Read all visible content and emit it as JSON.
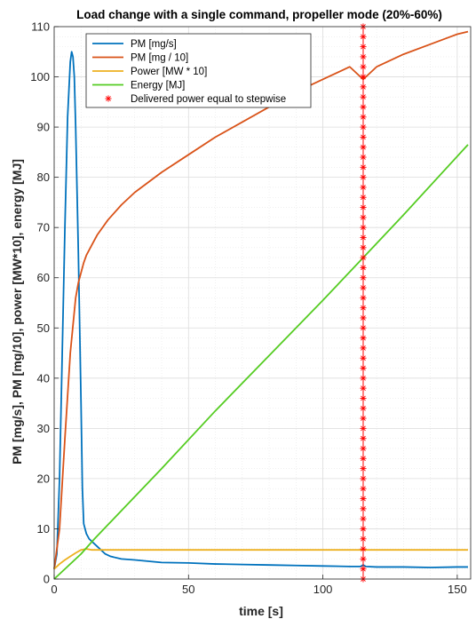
{
  "chart_data": {
    "type": "line",
    "title": "Load change with a single command, propeller mode (20%-60%)",
    "xlabel": "time [s]",
    "ylabel": "PM [mg/s], PM [mg/10], power [MW*10], energy [MJ]",
    "xlim": [
      0,
      155
    ],
    "ylim": [
      0,
      110
    ],
    "xticks": [
      0,
      50,
      100,
      150
    ],
    "yticks": [
      0,
      10,
      20,
      30,
      40,
      50,
      60,
      70,
      80,
      90,
      100,
      110
    ],
    "grid": true,
    "legend_position": "top-left",
    "series": [
      {
        "name": "PM [mg/s]",
        "color": "#0072BD",
        "x": [
          0,
          1,
          2,
          3,
          4,
          5,
          6,
          6.5,
          7,
          7.5,
          8,
          9,
          10,
          10.5,
          11,
          12,
          13,
          15,
          17,
          19,
          21,
          25,
          30,
          40,
          50,
          60,
          70,
          80,
          90,
          100,
          110,
          114,
          115,
          116,
          120,
          130,
          140,
          150,
          154
        ],
        "y": [
          2,
          5,
          20,
          45,
          70,
          92,
          103,
          105,
          104,
          100,
          90,
          65,
          35,
          18,
          11,
          9,
          8,
          7,
          6,
          5,
          4.5,
          4,
          3.8,
          3.3,
          3.2,
          3,
          2.9,
          2.8,
          2.7,
          2.6,
          2.5,
          2.5,
          2.8,
          2.5,
          2.4,
          2.4,
          2.3,
          2.4,
          2.4
        ]
      },
      {
        "name": "PM [mg / 10]",
        "color": "#D95319",
        "x": [
          0,
          2,
          4,
          6,
          8,
          9,
          10,
          11,
          12,
          14,
          16,
          20,
          25,
          30,
          40,
          50,
          60,
          70,
          80,
          90,
          100,
          110,
          115,
          120,
          130,
          140,
          150,
          154
        ],
        "y": [
          2,
          10,
          28,
          45,
          56,
          59,
          61,
          63,
          64.5,
          66.5,
          68.5,
          71.5,
          74.5,
          77,
          81,
          84.5,
          88,
          91,
          94,
          97,
          99.5,
          102,
          99.5,
          102,
          104.5,
          106.5,
          108.5,
          109
        ]
      },
      {
        "name": "Power [MW * 10]",
        "color": "#EDB120",
        "x": [
          0,
          2,
          4,
          6,
          8,
          10,
          12,
          14,
          16,
          20,
          30,
          50,
          100,
          154
        ],
        "y": [
          2,
          3,
          3.8,
          4.5,
          5.2,
          5.8,
          6,
          5.8,
          5.8,
          5.8,
          5.8,
          5.8,
          5.8,
          5.8
        ]
      },
      {
        "name": "Energy [MJ]",
        "color": "#55CC22",
        "x": [
          0,
          5,
          10,
          15,
          20,
          40,
          60,
          80,
          100,
          115,
          130,
          154
        ],
        "y": [
          0,
          2.5,
          5,
          8,
          10.8,
          22,
          33.5,
          44.5,
          55.5,
          64,
          72.5,
          86.5
        ]
      },
      {
        "name": "Delivered power equal to stepwise",
        "color": "#FF0000",
        "marker": "*",
        "x_constant": 115,
        "y": [
          0,
          2,
          4,
          6,
          8,
          10,
          12,
          14,
          16,
          18,
          20,
          22,
          24,
          26,
          28,
          30,
          32,
          34,
          36,
          38,
          40,
          42,
          44,
          46,
          48,
          50,
          52,
          54,
          56,
          58,
          60,
          62,
          64,
          66,
          68,
          70,
          72,
          74,
          76,
          78,
          80,
          82,
          84,
          86,
          88,
          90,
          92,
          94,
          96,
          98,
          100,
          102,
          104,
          106,
          108,
          110
        ]
      }
    ]
  }
}
